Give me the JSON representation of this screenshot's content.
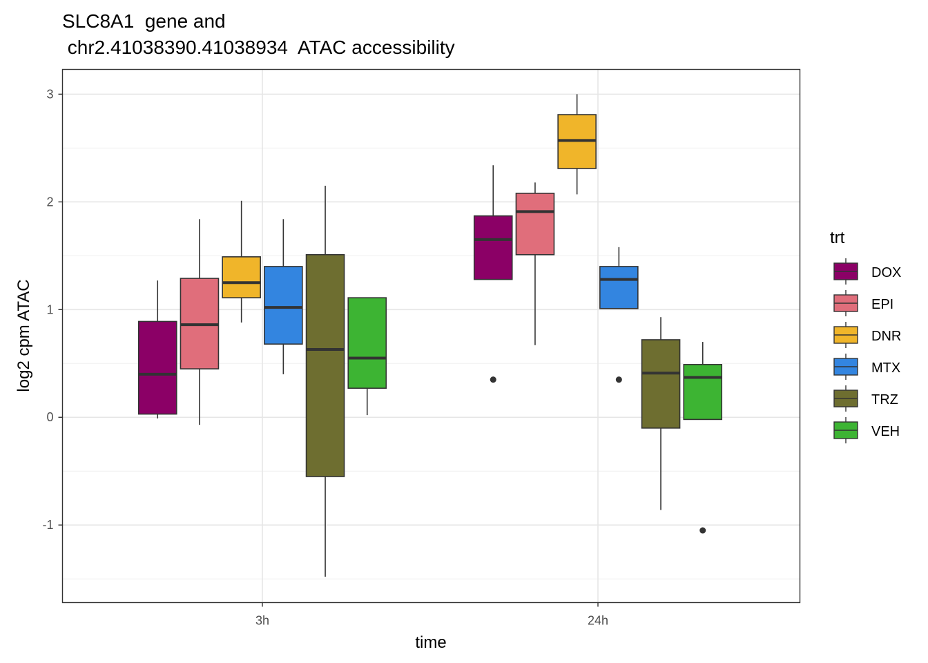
{
  "chart_data": {
    "type": "boxplot",
    "title_lines": [
      "SLC8A1  gene and",
      " chr2.41038390.41038934  ATAC accessibility"
    ],
    "xlabel": "time",
    "ylabel": "log2 cpm ATAC",
    "categories": [
      "3h",
      "24h"
    ],
    "y_ticks": [
      -1,
      0,
      1,
      2,
      3
    ],
    "y_tick_labels": [
      "-1",
      "0",
      "1",
      "2",
      "3"
    ],
    "ylim": [
      -1.72,
      3.23
    ],
    "grid": true,
    "legend": {
      "title": "trt",
      "position": "right"
    },
    "series": [
      {
        "name": "DOX",
        "color": "#8B0066",
        "boxes": [
          {
            "category": "3h",
            "lower_whisker": -0.01,
            "q1": 0.03,
            "median": 0.4,
            "q3": 0.89,
            "upper_whisker": 1.27,
            "outliers": []
          },
          {
            "category": "24h",
            "lower_whisker": 1.28,
            "q1": 1.28,
            "median": 1.65,
            "q3": 1.87,
            "upper_whisker": 2.34,
            "outliers": [
              0.35
            ]
          }
        ]
      },
      {
        "name": "EPI",
        "color": "#E06E7B",
        "boxes": [
          {
            "category": "3h",
            "lower_whisker": -0.07,
            "q1": 0.45,
            "median": 0.86,
            "q3": 1.29,
            "upper_whisker": 1.84,
            "outliers": []
          },
          {
            "category": "24h",
            "lower_whisker": 0.67,
            "q1": 1.51,
            "median": 1.91,
            "q3": 2.08,
            "upper_whisker": 2.18,
            "outliers": []
          }
        ]
      },
      {
        "name": "DNR",
        "color": "#F0B52A",
        "boxes": [
          {
            "category": "3h",
            "lower_whisker": 0.88,
            "q1": 1.11,
            "median": 1.25,
            "q3": 1.49,
            "upper_whisker": 2.01,
            "outliers": []
          },
          {
            "category": "24h",
            "lower_whisker": 2.07,
            "q1": 2.31,
            "median": 2.57,
            "q3": 2.81,
            "upper_whisker": 3.0,
            "outliers": []
          }
        ]
      },
      {
        "name": "MTX",
        "color": "#3385E0",
        "boxes": [
          {
            "category": "3h",
            "lower_whisker": 0.4,
            "q1": 0.68,
            "median": 1.02,
            "q3": 1.4,
            "upper_whisker": 1.84,
            "outliers": []
          },
          {
            "category": "24h",
            "lower_whisker": 1.01,
            "q1": 1.01,
            "median": 1.28,
            "q3": 1.4,
            "upper_whisker": 1.58,
            "outliers": [
              0.35
            ]
          }
        ]
      },
      {
        "name": "TRZ",
        "color": "#6E6E30",
        "boxes": [
          {
            "category": "3h",
            "lower_whisker": -1.48,
            "q1": -0.55,
            "median": 0.63,
            "q3": 1.51,
            "upper_whisker": 2.15,
            "outliers": []
          },
          {
            "category": "24h",
            "lower_whisker": -0.86,
            "q1": -0.1,
            "median": 0.41,
            "q3": 0.72,
            "upper_whisker": 0.93,
            "outliers": []
          }
        ]
      },
      {
        "name": "VEH",
        "color": "#3DB433",
        "boxes": [
          {
            "category": "3h",
            "lower_whisker": 0.02,
            "q1": 0.27,
            "median": 0.55,
            "q3": 1.11,
            "upper_whisker": 1.11,
            "outliers": []
          },
          {
            "category": "24h",
            "lower_whisker": -0.02,
            "q1": -0.02,
            "median": 0.37,
            "q3": 0.49,
            "upper_whisker": 0.7,
            "outliers": [
              -1.05
            ]
          }
        ]
      }
    ]
  }
}
